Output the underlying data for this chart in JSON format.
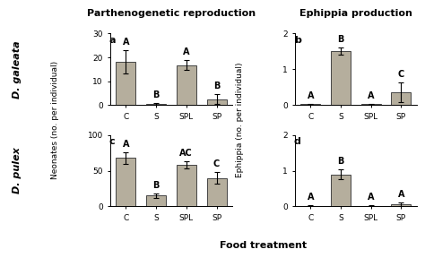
{
  "panel_a": {
    "label": "a",
    "values": [
      18.2,
      0.5,
      16.8,
      2.5
    ],
    "errors": [
      5.0,
      0.5,
      2.0,
      2.0
    ],
    "letters": [
      "A",
      "B",
      "A",
      "B"
    ],
    "ylim": [
      0,
      30
    ],
    "yticks": [
      0,
      10,
      20,
      30
    ]
  },
  "panel_b": {
    "label": "b",
    "values": [
      0.02,
      1.52,
      0.02,
      0.35
    ],
    "errors": [
      0.02,
      0.1,
      0.02,
      0.28
    ],
    "letters": [
      "A",
      "B",
      "A",
      "C"
    ],
    "ylim": [
      0,
      2
    ],
    "yticks": [
      0,
      1,
      2
    ]
  },
  "panel_c": {
    "label": "c",
    "values": [
      68.0,
      15.0,
      58.0,
      40.0
    ],
    "errors": [
      8.0,
      3.0,
      5.0,
      8.0
    ],
    "letters": [
      "A",
      "B",
      "AC",
      "C"
    ],
    "ylim": [
      0,
      100
    ],
    "yticks": [
      0,
      50,
      100
    ]
  },
  "panel_d": {
    "label": "d",
    "values": [
      0.02,
      0.9,
      0.02,
      0.06
    ],
    "errors": [
      0.02,
      0.15,
      0.02,
      0.04
    ],
    "letters": [
      "A",
      "B",
      "A",
      "A"
    ],
    "ylim": [
      0,
      2
    ],
    "yticks": [
      0,
      1,
      2
    ]
  },
  "categories": [
    "C",
    "S",
    "SPL",
    "SP"
  ],
  "bar_color": "#b5ae9d",
  "bar_edgecolor": "#444444",
  "title_left": "Parthenogenetic reproduction",
  "title_right": "Ephippia production",
  "ylabel_neonates": "Neonates (no. per individual)",
  "ylabel_ephippia": "Ephippia (no. per individual)",
  "xlabel": "Food treatment",
  "row_label_top": "D. galeata",
  "row_label_bot": "D. pulex",
  "letter_fontsize": 7,
  "panel_label_fontsize": 8,
  "axis_fontsize": 6.5,
  "title_fontsize": 8,
  "row_label_fontsize": 8
}
